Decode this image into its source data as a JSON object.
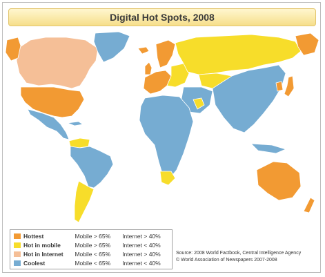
{
  "title": "Digital Hot Spots, 2008",
  "colors": {
    "hottest": "#f29a33",
    "hot_mobile": "#f7dd2a",
    "hot_internet": "#f5bf97",
    "coolest": "#76acd2",
    "ocean": "#ffffff",
    "border": "#ffffff"
  },
  "legend": [
    {
      "label": "Hottest",
      "mobile": "Mobile > 65%",
      "internet": "Internet > 40%",
      "color": "#f29a33"
    },
    {
      "label": "Hot in mobile",
      "mobile": "Mobile > 65%",
      "internet": "Internet < 40%",
      "color": "#f7dd2a"
    },
    {
      "label": "Hot in Internet",
      "mobile": "Mobile < 65%",
      "internet": "Internet > 40%",
      "color": "#f5bf97"
    },
    {
      "label": "Coolest",
      "mobile": "Mobile < 65%",
      "internet": "Internet < 40%",
      "color": "#76acd2"
    }
  ],
  "source": {
    "line1": "Source: 2008 World Factbook, Central Intelligence Agency",
    "line2": "© World Association of Newspapers 2007-2008"
  }
}
